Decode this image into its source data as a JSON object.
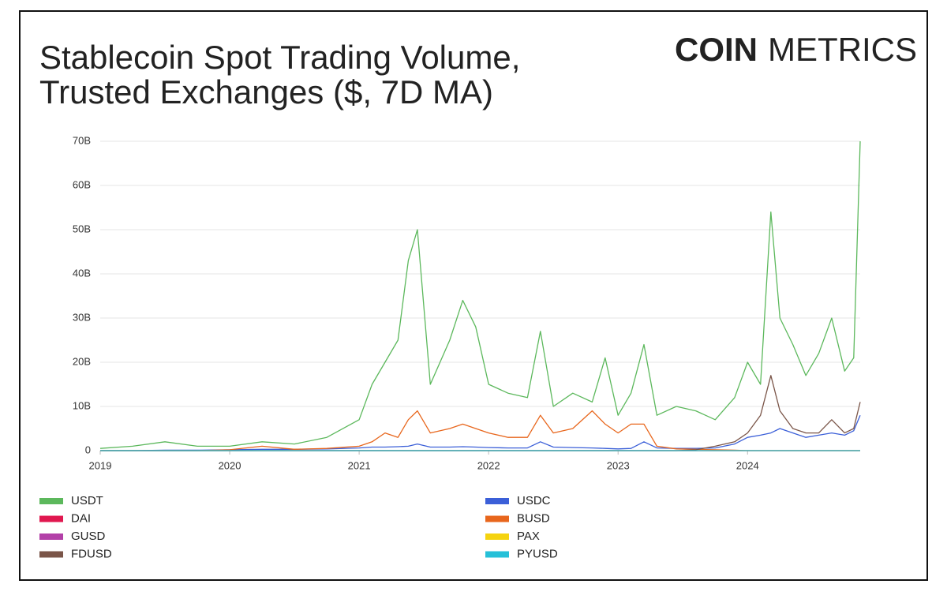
{
  "chart_data": {
    "type": "line",
    "title": [
      "Stablecoin Spot Trading Volume,",
      "Trusted Exchanges ($, 7D MA)"
    ],
    "logo_bold": "COIN",
    "logo_light": "METRICS",
    "x": [
      2019.0,
      2019.25,
      2019.5,
      2019.75,
      2020.0,
      2020.25,
      2020.5,
      2020.75,
      2021.0,
      2021.1,
      2021.2,
      2021.3,
      2021.38,
      2021.45,
      2021.55,
      2021.7,
      2021.8,
      2021.9,
      2022.0,
      2022.15,
      2022.3,
      2022.4,
      2022.5,
      2022.65,
      2022.8,
      2022.9,
      2023.0,
      2023.1,
      2023.2,
      2023.3,
      2023.45,
      2023.6,
      2023.75,
      2023.9,
      2024.0,
      2024.1,
      2024.18,
      2024.25,
      2024.35,
      2024.45,
      2024.55,
      2024.65,
      2024.75,
      2024.82,
      2024.87
    ],
    "xlim": [
      2019.0,
      2024.87
    ],
    "xticks": [
      2019,
      2020,
      2021,
      2022,
      2023,
      2024
    ],
    "ylim": [
      0,
      70
    ],
    "yticks": [
      0,
      {
        "value": 10,
        "label": "10B"
      },
      {
        "value": 20,
        "label": "20B"
      },
      {
        "value": 30,
        "label": "30B"
      },
      {
        "value": 40,
        "label": "40B"
      },
      {
        "value": 50,
        "label": "50B"
      },
      {
        "value": 60,
        "label": "60B"
      },
      {
        "value": 70,
        "label": "70B"
      }
    ],
    "grid": true,
    "series": [
      {
        "name": "USDT",
        "color": "#5cb85c",
        "values": [
          0.5,
          1,
          2,
          1,
          1,
          2,
          1.5,
          3,
          7,
          15,
          20,
          25,
          43,
          50,
          15,
          25,
          34,
          28,
          15,
          13,
          12,
          27,
          10,
          13,
          11,
          21,
          8,
          13,
          24,
          8,
          10,
          9,
          7,
          12,
          20,
          15,
          54,
          30,
          24,
          17,
          22,
          30,
          18,
          21,
          70
        ]
      },
      {
        "name": "USDC",
        "color": "#3b5fd8",
        "values": [
          0,
          0,
          0.1,
          0.1,
          0.2,
          0.3,
          0.3,
          0.4,
          0.6,
          0.8,
          0.8,
          0.9,
          1,
          1.5,
          0.8,
          0.8,
          0.9,
          0.8,
          0.7,
          0.6,
          0.6,
          2,
          0.8,
          0.7,
          0.6,
          0.5,
          0.4,
          0.5,
          2,
          0.6,
          0.5,
          0.5,
          0.6,
          1.5,
          3,
          3.5,
          4,
          5,
          4,
          3,
          3.5,
          4,
          3.5,
          4.5,
          8
        ]
      },
      {
        "name": "DAI",
        "color": "#e0174f",
        "values": [
          0,
          0,
          0,
          0,
          0,
          0,
          0,
          0,
          0,
          0,
          0,
          0,
          0,
          0,
          0,
          0,
          0,
          0,
          0,
          0,
          0,
          0,
          0,
          0,
          0,
          0,
          0,
          0,
          0,
          0,
          0,
          0,
          0,
          0,
          0,
          0,
          0,
          0,
          0,
          0,
          0,
          0,
          0,
          0,
          0
        ]
      },
      {
        "name": "BUSD",
        "color": "#e8661c",
        "values": [
          0,
          0,
          0,
          0,
          0.2,
          1,
          0.3,
          0.5,
          1,
          2,
          4,
          3,
          7,
          9,
          4,
          5,
          6,
          5,
          4,
          3,
          3,
          8,
          4,
          5,
          9,
          6,
          4,
          6,
          6,
          1,
          0.4,
          0.3,
          0.2,
          0.1,
          0,
          0,
          0,
          0,
          0,
          0,
          0,
          0,
          0,
          0,
          0
        ]
      },
      {
        "name": "GUSD",
        "color": "#b340a8",
        "values": [
          0,
          0,
          0,
          0,
          0,
          0,
          0,
          0,
          0,
          0,
          0,
          0,
          0,
          0,
          0,
          0,
          0,
          0,
          0,
          0,
          0,
          0,
          0,
          0,
          0,
          0,
          0,
          0,
          0,
          0,
          0,
          0,
          0,
          0,
          0,
          0,
          0,
          0,
          0,
          0,
          0,
          0,
          0,
          0,
          0
        ]
      },
      {
        "name": "PAX",
        "color": "#f5d30f",
        "values": [
          0,
          0,
          0,
          0,
          0,
          0,
          0,
          0,
          0,
          0,
          0,
          0,
          0,
          0,
          0,
          0,
          0,
          0,
          0,
          0,
          0,
          0,
          0,
          0,
          0,
          0,
          0,
          0,
          0,
          0,
          0,
          0,
          0,
          0,
          0,
          0,
          0,
          0,
          0,
          0,
          0,
          0,
          0,
          0,
          0
        ]
      },
      {
        "name": "FDUSD",
        "color": "#7a5548",
        "values": [
          0,
          0,
          0,
          0,
          0,
          0,
          0,
          0,
          0,
          0,
          0,
          0,
          0,
          0,
          0,
          0,
          0,
          0,
          0,
          0,
          0,
          0,
          0,
          0,
          0,
          0,
          0,
          0,
          0,
          0,
          0,
          0.2,
          1,
          2,
          4,
          8,
          17,
          9,
          5,
          4,
          4,
          7,
          4,
          5,
          11
        ]
      },
      {
        "name": "PYUSD",
        "color": "#26c0d8",
        "values": [
          0,
          0,
          0,
          0,
          0,
          0,
          0,
          0,
          0,
          0,
          0,
          0,
          0,
          0,
          0,
          0,
          0,
          0,
          0,
          0,
          0,
          0,
          0,
          0,
          0,
          0,
          0,
          0,
          0,
          0,
          0,
          0,
          0,
          0,
          0,
          0,
          0,
          0,
          0,
          0,
          0,
          0,
          0,
          0,
          0
        ]
      }
    ]
  }
}
